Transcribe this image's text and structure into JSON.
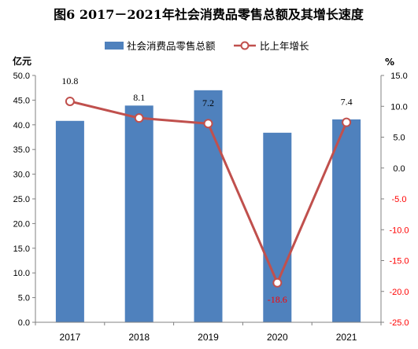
{
  "colors": {
    "bar": "#4f81bd",
    "line": "#c0504d",
    "right_axis_positive": "#000000",
    "right_axis_negative": "#ff0000",
    "label_negative": "#ff0000"
  },
  "chart_data": {
    "type": "bar",
    "title": "图6  2017－2021年社会消费品零售总额及其增长速度",
    "categories": [
      "2017",
      "2018",
      "2019",
      "2020",
      "2021"
    ],
    "series": [
      {
        "name": "社会消费品零售总额",
        "type": "bar",
        "axis": "left",
        "values": [
          40.8,
          43.9,
          47.0,
          38.4,
          41.1
        ]
      },
      {
        "name": "比上年增长",
        "type": "line",
        "axis": "right",
        "values": [
          10.8,
          8.1,
          7.2,
          -18.6,
          7.4
        ],
        "labels": [
          "10.8",
          "8.1",
          "7.2",
          "-18.6",
          "7.4"
        ]
      }
    ],
    "y_left": {
      "unit": "亿元",
      "min": 0,
      "max": 50,
      "step": 5,
      "ticks": [
        "0.0",
        "5.0",
        "10.0",
        "15.0",
        "20.0",
        "25.0",
        "30.0",
        "35.0",
        "40.0",
        "45.0",
        "50.0"
      ]
    },
    "y_right": {
      "unit": "%",
      "min": -25,
      "max": 15,
      "step": 5,
      "ticks": [
        "-25.0",
        "-20.0",
        "-15.0",
        "-10.0",
        "-5.0",
        "0.0",
        "5.0",
        "10.0",
        "15.0"
      ]
    },
    "legend_position": "top",
    "grid": false
  }
}
